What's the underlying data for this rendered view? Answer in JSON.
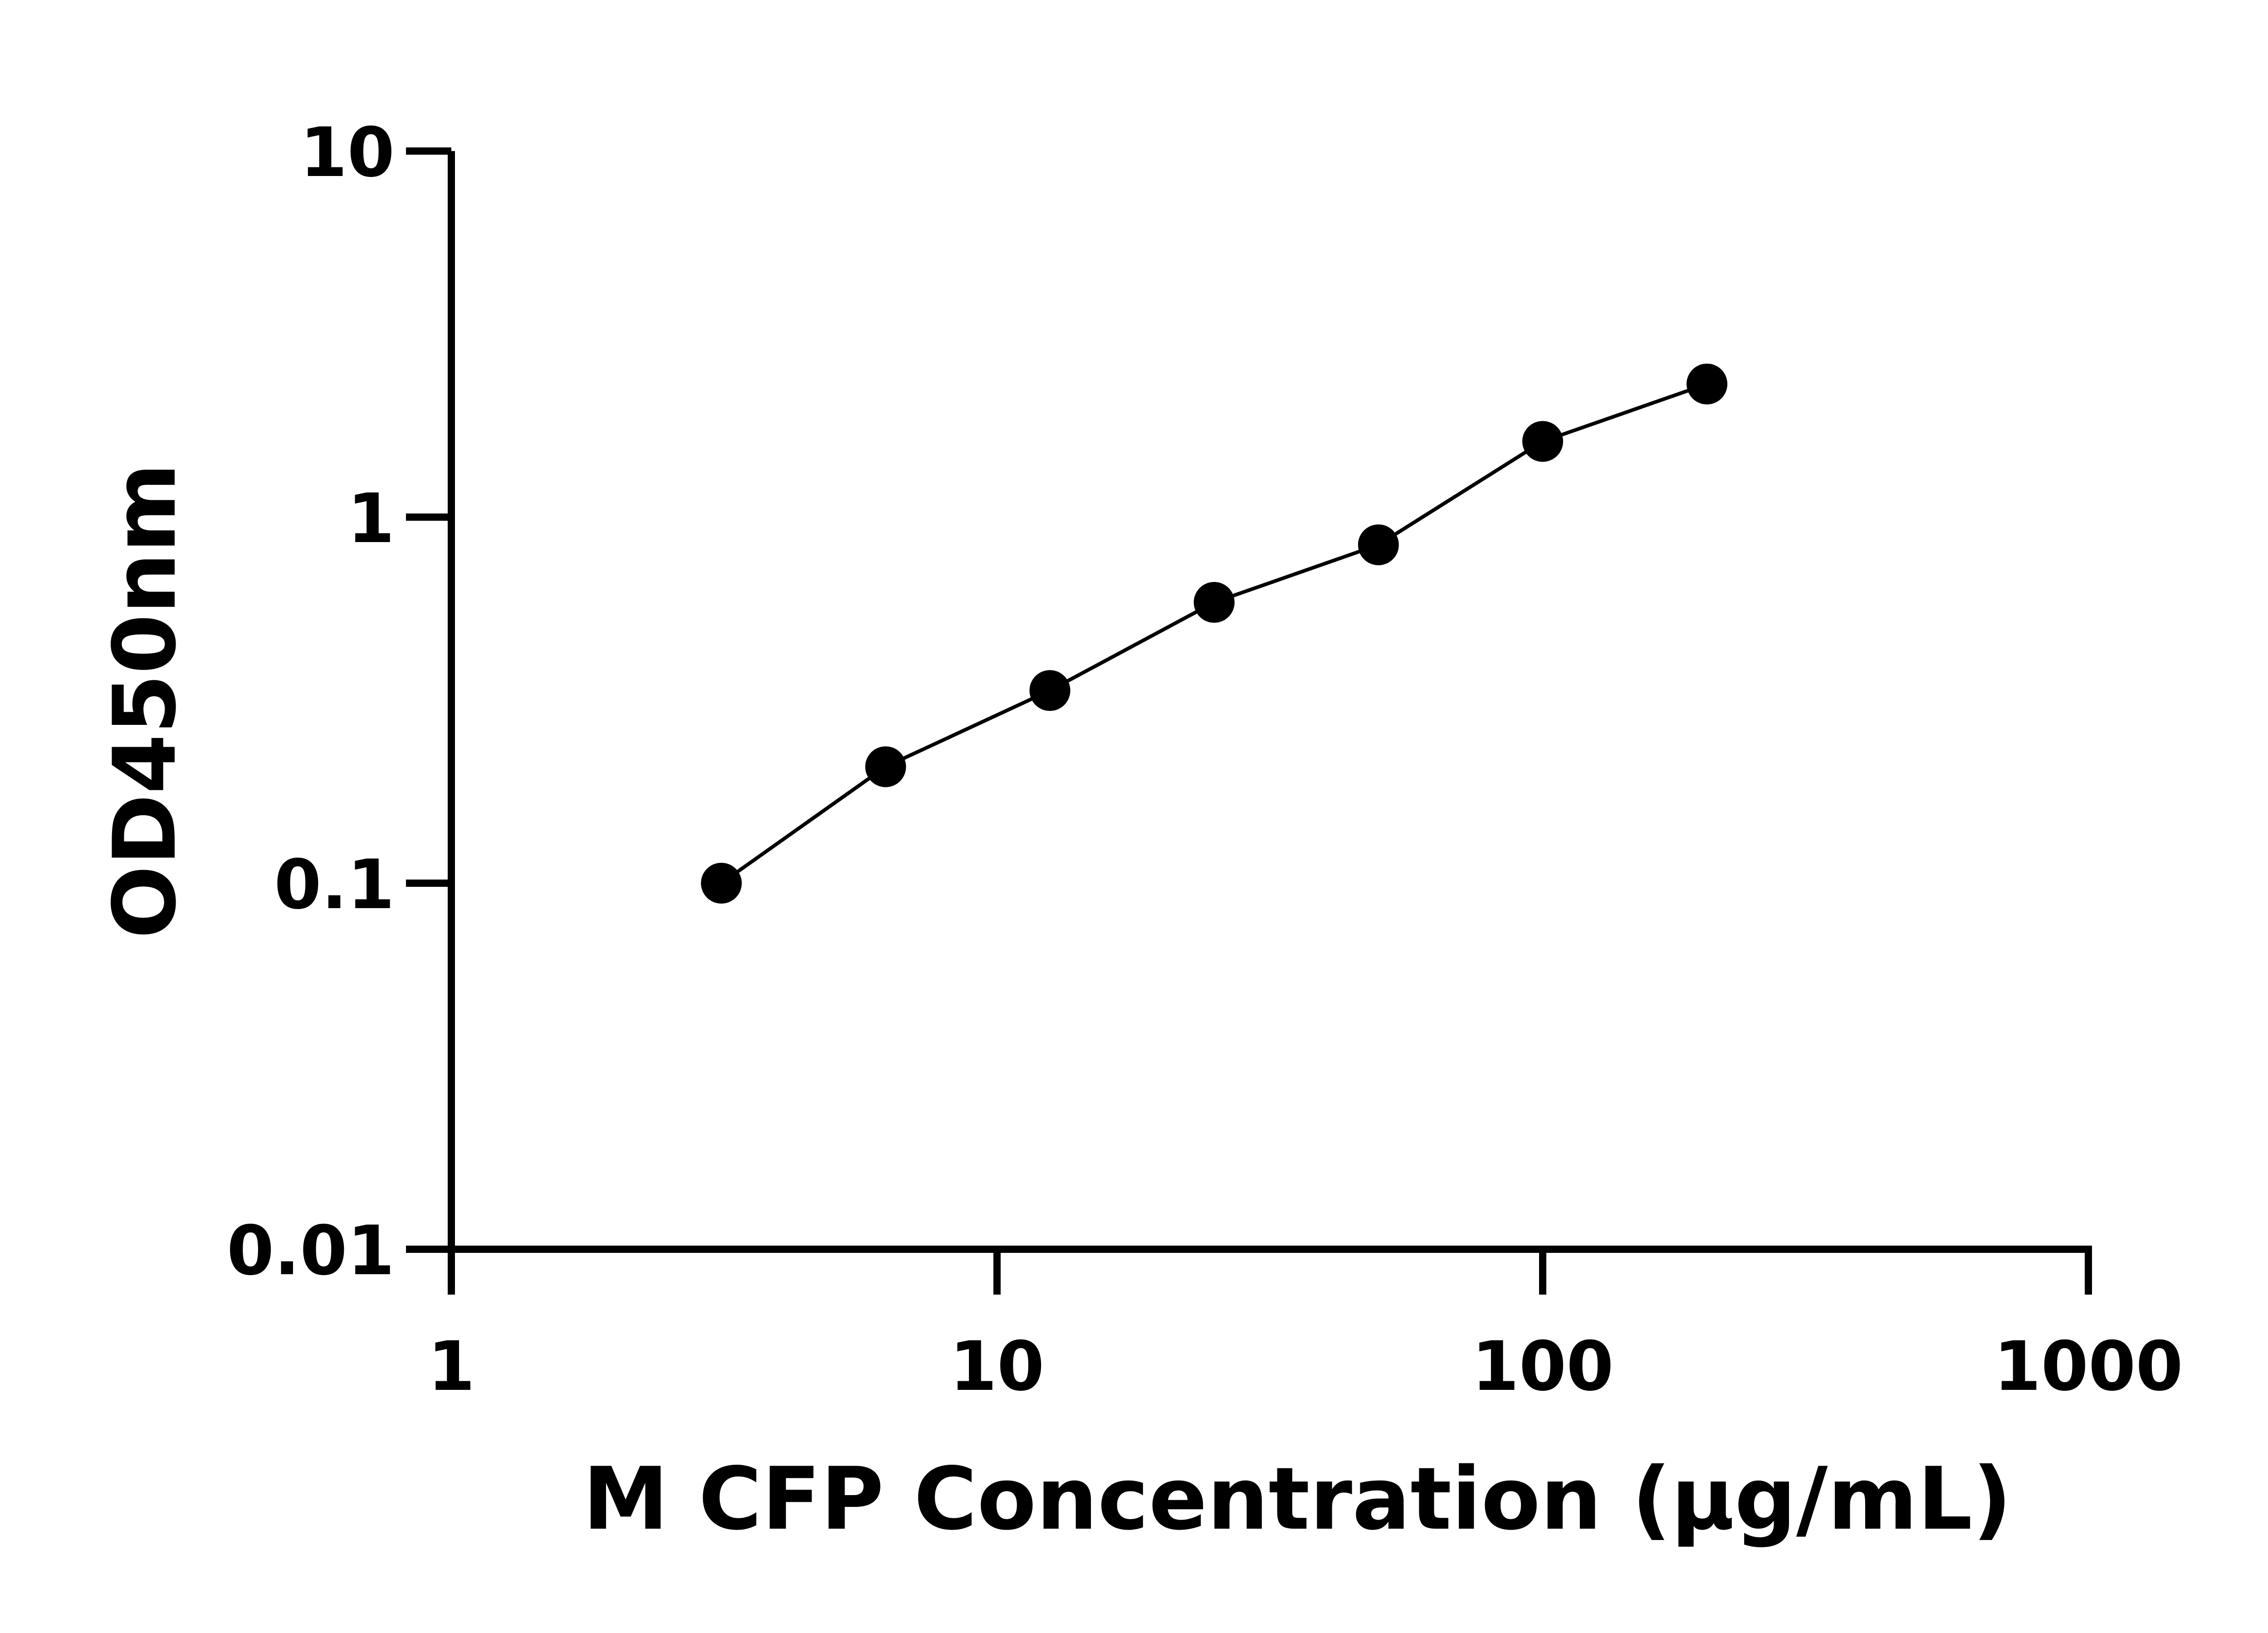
{
  "chart_data": {
    "type": "scatter",
    "title": "",
    "xlabel": "M CFP Concentration (μg/mL)",
    "ylabel": "OD450nm",
    "x_scale": "log",
    "y_scale": "log",
    "xlim": [
      1,
      1000
    ],
    "ylim": [
      0.01,
      10
    ],
    "x_ticks": [
      "1",
      "10",
      "100",
      "1000"
    ],
    "y_ticks": [
      "0.01",
      "0.1",
      "1",
      "10"
    ],
    "grid": false,
    "legend": "none",
    "fit_line": true,
    "colors": {
      "points": "#000000",
      "line": "#000000"
    },
    "x": [
      3.125,
      6.25,
      12.5,
      25,
      50,
      100,
      200
    ],
    "y": [
      0.1,
      0.208,
      0.336,
      0.585,
      0.84,
      1.61,
      2.31
    ]
  }
}
